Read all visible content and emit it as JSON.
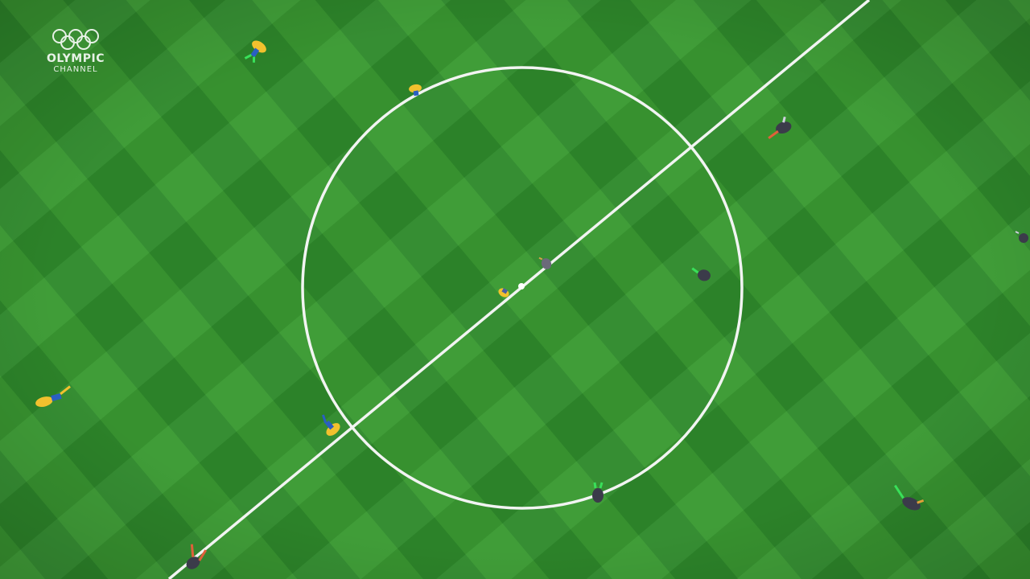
{
  "broadcaster": {
    "brand_line1": "OLYMPIC",
    "brand_line2": "CHANNEL",
    "logo_icon": "olympic-rings-icon"
  },
  "colors": {
    "pitch_light": "#3a9a32",
    "pitch_dark": "#2c8428",
    "line_white": "#f2f4f2",
    "team_yellow": "#f2c12e",
    "team_blue": "#2a5fc2",
    "team_dark": "#3b3b4a",
    "team_accent_green": "#39e05a"
  }
}
